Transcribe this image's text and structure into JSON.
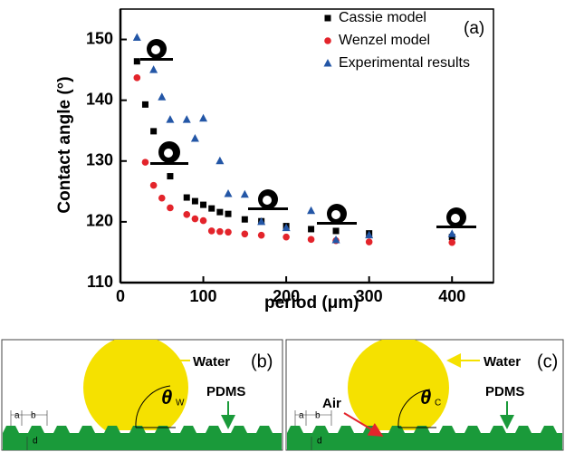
{
  "chart_data": {
    "type": "scatter",
    "xlabel": "period (μm)",
    "ylabel": "Contact angle (°)",
    "annotation": "(a)",
    "xlim": [
      0,
      450
    ],
    "ylim": [
      110,
      155
    ],
    "xticks": [
      0,
      100,
      200,
      300,
      400
    ],
    "yticks": [
      110,
      120,
      130,
      140,
      150
    ],
    "legend": "upper right",
    "series": [
      {
        "name": "Cassie model",
        "color": "#000000",
        "marker": "square",
        "x": [
          20,
          30,
          40,
          60,
          80,
          90,
          100,
          110,
          120,
          130,
          150,
          170,
          200,
          230,
          260,
          300,
          400
        ],
        "values": [
          146.4,
          139.3,
          134.9,
          127.5,
          124,
          123.4,
          122.8,
          122.2,
          121.6,
          121.3,
          120.4,
          120.1,
          119.3,
          118.8,
          118.5,
          118.1,
          117.5
        ]
      },
      {
        "name": "Wenzel model",
        "color": "#e3242b",
        "marker": "circle",
        "x": [
          20,
          30,
          40,
          50,
          60,
          80,
          90,
          100,
          110,
          120,
          130,
          150,
          170,
          200,
          230,
          260,
          300,
          400
        ],
        "values": [
          143.7,
          129.8,
          126,
          123.9,
          122.3,
          121.2,
          120.5,
          120.2,
          118.5,
          118.4,
          118.3,
          118,
          117.8,
          117.5,
          117.1,
          116.9,
          116.7,
          116.6
        ]
      },
      {
        "name": "Experimental results",
        "color": "#2356a6",
        "marker": "triangle",
        "x": [
          20,
          40,
          50,
          60,
          80,
          90,
          100,
          120,
          130,
          150,
          170,
          200,
          230,
          260,
          300,
          400
        ],
        "values": [
          150.3,
          145,
          140.5,
          136.8,
          136.8,
          133.7,
          137,
          130,
          124.6,
          124.5,
          120,
          119,
          121.8,
          117,
          117.8,
          118
        ]
      }
    ]
  },
  "panels": [
    {
      "tag": "(b)",
      "water": "Water",
      "pdms": "PDMS",
      "theta": "θ",
      "theta_sub": "W",
      "a": "a",
      "b": "b",
      "d": "d"
    },
    {
      "tag": "(c)",
      "water": "Water",
      "pdms": "PDMS",
      "air": "Air",
      "theta": "θ",
      "theta_sub": "C",
      "a": "a",
      "b": "b",
      "d": "d"
    }
  ]
}
